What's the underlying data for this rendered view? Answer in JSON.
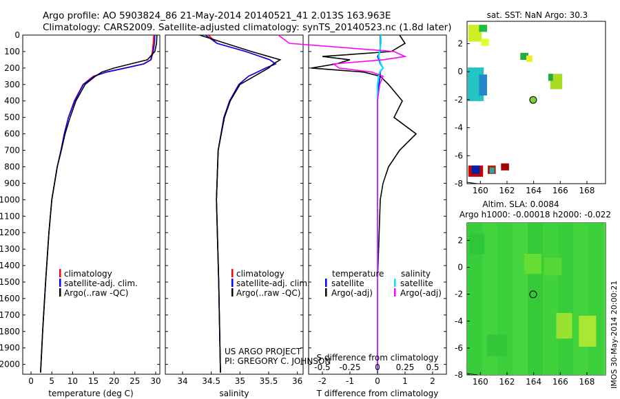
{
  "header": {
    "title_line1": "Argo profile: AO 5903824_86 21-May-2014 20140521_41 2.013S 163.963E",
    "title_line2": "Climatology: CARS2009. Satellite-adjusted climatology: synTS_20140523.nc (1.8d later)"
  },
  "side_label": "IMOS 30-May-2014 20:00:21",
  "colors": {
    "climatology": "#ff0000",
    "satellite": "#0000ff",
    "argo": "#000000",
    "sal_satellite": "#00e5ff",
    "sal_argo": "#ff00ff",
    "ocean_green": "#3fd23f"
  },
  "chart_data": [
    {
      "type": "line",
      "panel": "temperature",
      "xlabel": "temperature (deg C)",
      "ylabel": "",
      "xlim": [
        -2,
        31
      ],
      "ylim": [
        2060,
        0
      ],
      "xticks": [
        0,
        5,
        10,
        15,
        20,
        25,
        30
      ],
      "yticks": [
        0,
        100,
        200,
        300,
        400,
        500,
        600,
        700,
        800,
        900,
        1000,
        1100,
        1200,
        1300,
        1400,
        1500,
        1600,
        1700,
        1800,
        1900,
        2000
      ],
      "legend": [
        "climatology",
        "satellite-adj. clim.",
        "Argo(..raw -QC)"
      ],
      "legend_position": "lower-center",
      "depth": [
        0,
        50,
        100,
        150,
        175,
        200,
        225,
        250,
        300,
        400,
        500,
        600,
        700,
        800,
        1000,
        1200,
        1500,
        1800,
        2050
      ],
      "series": [
        {
          "name": "climatology",
          "values": [
            29.5,
            29.4,
            29.2,
            28.8,
            27.0,
            22.5,
            18.0,
            15.0,
            12.5,
            10.4,
            9.0,
            8.0,
            7.2,
            6.3,
            5.0,
            4.3,
            3.5,
            2.8,
            2.3
          ]
        },
        {
          "name": "satellite-adj. clim.",
          "values": [
            29.8,
            29.7,
            29.4,
            28.9,
            27.2,
            22.8,
            18.2,
            15.2,
            12.6,
            10.5,
            9.0,
            8.0,
            7.2,
            6.3,
            5.0,
            4.3,
            3.5,
            2.8,
            2.3
          ]
        },
        {
          "name": "Argo(..raw -QC)",
          "values": [
            30.3,
            30.2,
            29.8,
            28.0,
            24.0,
            20.0,
            17.0,
            15.5,
            13.0,
            10.8,
            9.4,
            8.2,
            7.3,
            6.3,
            5.0,
            4.3,
            3.5,
            2.8,
            2.3
          ]
        }
      ]
    },
    {
      "type": "line",
      "panel": "salinity",
      "xlabel": "salinity",
      "xlim": [
        33.7,
        36.1
      ],
      "ylim": [
        2060,
        0
      ],
      "xticks": [
        34,
        34.5,
        35,
        35.5,
        36
      ],
      "legend": [
        "climatology",
        "satellite-adj. clim.",
        "Argo(..raw -QC)"
      ],
      "legend_position": "lower-center",
      "annotation": [
        "US ARGO PROJECT",
        "PI: GREGORY C. JOHNSON"
      ],
      "depth": [
        0,
        50,
        100,
        150,
        175,
        200,
        250,
        300,
        400,
        500,
        700,
        1000,
        1500,
        2050
      ],
      "series": [
        {
          "name": "climatology",
          "values": [
            34.45,
            34.6,
            35.1,
            35.52,
            35.62,
            35.45,
            35.15,
            34.98,
            34.82,
            34.72,
            34.62,
            34.59,
            34.63,
            34.66
          ]
        },
        {
          "name": "satellite-adj. clim.",
          "values": [
            34.4,
            34.6,
            35.1,
            35.52,
            35.62,
            35.45,
            35.15,
            34.98,
            34.82,
            34.72,
            34.62,
            34.59,
            34.63,
            34.66
          ]
        },
        {
          "name": "Argo(..raw -QC)",
          "values": [
            34.3,
            34.75,
            35.2,
            35.7,
            35.58,
            35.5,
            35.25,
            35.0,
            34.83,
            34.73,
            34.62,
            34.59,
            34.63,
            34.66
          ]
        }
      ]
    },
    {
      "type": "line",
      "panel": "difference",
      "xlabel_top": "S difference from climatology",
      "xlabel": "T difference from climatology",
      "xlim": [
        -2.5,
        2.5
      ],
      "ylim": [
        2060,
        0
      ],
      "xticks_T": [
        -2,
        -1,
        0,
        1,
        2
      ],
      "xticks_S": [
        "-0.5",
        "-0.25",
        "0",
        "0.25",
        "0.5"
      ],
      "legend_left": {
        "header": "temperature",
        "items": [
          "satellite",
          "Argo(-adj)"
        ]
      },
      "legend_right": {
        "header": "salinity",
        "items": [
          "satellite",
          "Argo(-adj)"
        ]
      },
      "depth": [
        0,
        50,
        100,
        130,
        150,
        175,
        200,
        225,
        250,
        300,
        400,
        500,
        600,
        700,
        800,
        900,
        1000,
        1500,
        2050
      ],
      "series": [
        {
          "name": "T satellite",
          "values": [
            0.1,
            0.1,
            0.1,
            0.0,
            0.05,
            0.1,
            0.2,
            0.1,
            0.1,
            0.05,
            0.0,
            0.0,
            0.0,
            0.0,
            0.0,
            0.0,
            0.0,
            0.0,
            0.0
          ]
        },
        {
          "name": "T Argo(-adj)",
          "values": [
            0.8,
            1.0,
            0.5,
            -2.0,
            -1.0,
            -1.5,
            -2.4,
            -0.5,
            0.1,
            0.4,
            0.9,
            0.6,
            1.4,
            0.8,
            0.4,
            0.2,
            0.1,
            0.0,
            0.0
          ]
        },
        {
          "name": "S satellite",
          "values": [
            0.03,
            0.03,
            0.02,
            0.01,
            0.02,
            0.03,
            0.05,
            0.02,
            0.01,
            0.0,
            0.0,
            0.0,
            0.0,
            0.0,
            0.0,
            0.0,
            0.0,
            0.0,
            0.0
          ]
        },
        {
          "name": "S Argo(-adj)",
          "values": [
            -0.9,
            -0.8,
            0.15,
            0.25,
            0.05,
            -0.4,
            -0.35,
            -0.05,
            0.05,
            0.02,
            0.0,
            0.0,
            0.0,
            0.0,
            0.0,
            0.0,
            0.0,
            0.0,
            0.0
          ]
        }
      ]
    },
    {
      "type": "heatmap",
      "panel": "sst_map",
      "title": "sat. SST: NaN Argo: 30.3",
      "xlim": [
        159,
        169.4
      ],
      "ylim": [
        -8,
        3.6
      ],
      "xticks": [
        160,
        162,
        164,
        166,
        168
      ],
      "yticks": [
        -8,
        -6,
        -4,
        -2,
        0,
        2
      ],
      "argo_position": {
        "lon": 163.963,
        "lat": -2.013
      },
      "patches": [
        {
          "lon": 159.1,
          "lat": 3.35,
          "w": 1.0,
          "h": 1.2,
          "color": "#ccee22"
        },
        {
          "lon": 160.05,
          "lat": 2.35,
          "w": 0.6,
          "h": 0.5,
          "color": "#ddff33"
        },
        {
          "lon": 159.9,
          "lat": 3.35,
          "w": 0.6,
          "h": 0.5,
          "color": "#22bb44"
        },
        {
          "lon": 159.05,
          "lat": 0.3,
          "w": 1.2,
          "h": 2.4,
          "color": "#22c4c4"
        },
        {
          "lon": 159.9,
          "lat": -0.2,
          "w": 0.6,
          "h": 1.5,
          "color": "#2288cc"
        },
        {
          "lon": 163.0,
          "lat": 1.35,
          "w": 0.6,
          "h": 0.5,
          "color": "#22aa44"
        },
        {
          "lon": 163.45,
          "lat": 1.15,
          "w": 0.45,
          "h": 0.45,
          "color": "#eeee22"
        },
        {
          "lon": 165.25,
          "lat": -0.15,
          "w": 0.9,
          "h": 1.1,
          "color": "#aadd22"
        },
        {
          "lon": 165.1,
          "lat": -0.15,
          "w": 0.35,
          "h": 0.5,
          "color": "#22aa44"
        },
        {
          "lon": 159.1,
          "lat": -6.7,
          "w": 1.1,
          "h": 0.8,
          "color": "#cc0000"
        },
        {
          "lon": 159.35,
          "lat": -6.7,
          "w": 0.6,
          "h": 0.6,
          "color": "#0022aa"
        },
        {
          "lon": 160.55,
          "lat": -6.7,
          "w": 0.6,
          "h": 0.6,
          "color": "#aa2200"
        },
        {
          "lon": 160.7,
          "lat": -6.85,
          "w": 0.35,
          "h": 0.4,
          "color": "#22aaaa"
        },
        {
          "lon": 161.55,
          "lat": -6.55,
          "w": 0.6,
          "h": 0.5,
          "color": "#aa0000"
        }
      ]
    },
    {
      "type": "heatmap",
      "panel": "sla_map",
      "title_line1": "Altim. SLA: 0.0084",
      "title_line2": "Argo h1000: -0.00018 h2000: -0.022",
      "xlim": [
        159,
        169.4
      ],
      "ylim": [
        -8,
        3.3
      ],
      "xticks": [
        160,
        162,
        164,
        166,
        168
      ],
      "yticks": [
        -8,
        -6,
        -4,
        -2,
        0,
        2
      ],
      "argo_position": {
        "lon": 163.963,
        "lat": -2.013
      },
      "patches": [
        {
          "lon": 163.3,
          "lat": 1.0,
          "w": 1.3,
          "h": 1.5,
          "color": "#66dd33"
        },
        {
          "lon": 165.7,
          "lat": -3.4,
          "w": 1.2,
          "h": 1.9,
          "color": "#99e233"
        },
        {
          "lon": 167.4,
          "lat": -3.6,
          "w": 1.3,
          "h": 2.3,
          "color": "#aae633"
        },
        {
          "lon": 159.2,
          "lat": 2.5,
          "w": 1.1,
          "h": 1.5,
          "color": "#2ec63a"
        },
        {
          "lon": 160.5,
          "lat": -5.0,
          "w": 1.5,
          "h": 1.6,
          "color": "#32c83a"
        },
        {
          "lon": 164.8,
          "lat": 0.7,
          "w": 1.3,
          "h": 1.3,
          "color": "#55d838"
        }
      ]
    }
  ]
}
